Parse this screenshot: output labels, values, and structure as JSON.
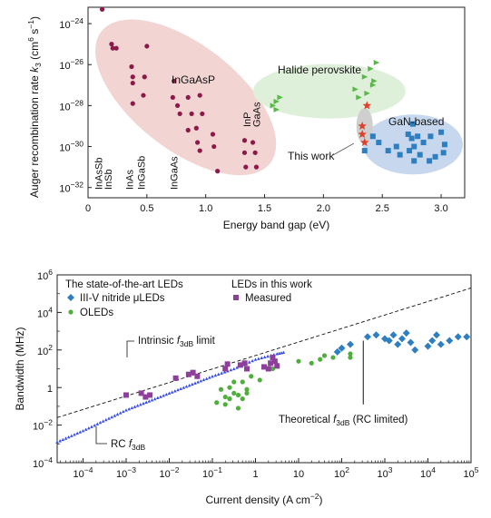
{
  "chart_data": [
    {
      "type": "scatter",
      "xlabel": "Energy band gap (eV)",
      "ylabel_parts": {
        "prefix": "Auger recombination rate ",
        "var": "k",
        "sub": "3",
        "unit_open": " (cm",
        "unit_exp1": "6",
        "unit_mid": " s",
        "unit_exp2": "−1",
        "unit_close": ")"
      },
      "xlim": [
        0,
        3.2
      ],
      "ylim_log10": [
        -32.5,
        -23.2
      ],
      "x_ticks": [
        0,
        0.5,
        1.0,
        1.5,
        2.0,
        2.5,
        3.0
      ],
      "x_tick_labels": [
        "0",
        "0.5",
        "1.0",
        "1.5",
        "2.0",
        "2.5",
        "3.0"
      ],
      "y_ticks_log10": [
        -24,
        -26,
        -28,
        -30,
        -32
      ],
      "y_tick_labels": [
        {
          "b": "10",
          "e": "−24"
        },
        {
          "b": "10",
          "e": "−26"
        },
        {
          "b": "10",
          "e": "−28"
        },
        {
          "b": "10",
          "e": "−30"
        },
        {
          "b": "10",
          "e": "−32"
        }
      ],
      "region_labels": {
        "ingaasp": "InGaAsP",
        "perovskite": "Halide perovskite",
        "gan": "GaN-based",
        "this_work": "This work"
      },
      "material_labels": [
        {
          "text": "InAsSb",
          "x": 0.09
        },
        {
          "text": "InSb",
          "x": 0.17
        },
        {
          "text": "InAs",
          "x": 0.35
        },
        {
          "text": "InGaSb",
          "x": 0.45
        },
        {
          "text": "InGaAs",
          "x": 0.73
        },
        {
          "text": "InP",
          "x": 1.35
        },
        {
          "text": "GaAs",
          "x": 1.43
        }
      ],
      "colors": {
        "ingaasp": "#8b1a4a",
        "ingaasp_fill": "#f2d4d2",
        "perovskite": "#5ab84a",
        "perovskite_fill": "#dff0da",
        "gan": "#2f7fc0",
        "gan_fill": "#c6d7ee",
        "this_work": "#e0412b",
        "this_work_fill": "#cfcfcf"
      },
      "series": [
        {
          "group": "InGaAsP",
          "marker": "circle",
          "color": "#8b1a4a",
          "points": [
            [
              0.12,
              -23.3
            ],
            [
              0.2,
              -25.0
            ],
            [
              0.21,
              -25.2
            ],
            [
              0.24,
              -25.2
            ],
            [
              0.37,
              -26.1
            ],
            [
              0.38,
              -26.6
            ],
            [
              0.38,
              -26.9
            ],
            [
              0.48,
              -26.6
            ],
            [
              0.47,
              -27.5
            ],
            [
              0.38,
              -27.9
            ],
            [
              0.5,
              -25.1
            ],
            [
              0.73,
              -26.8
            ],
            [
              0.72,
              -27.6
            ],
            [
              0.76,
              -28.0
            ],
            [
              0.85,
              -27.6
            ],
            [
              0.78,
              -28.4
            ],
            [
              0.88,
              -28.4
            ],
            [
              0.95,
              -27.5
            ],
            [
              0.97,
              -28.4
            ],
            [
              0.85,
              -29.2
            ],
            [
              0.92,
              -29.1
            ],
            [
              0.93,
              -29.8
            ],
            [
              0.95,
              -30.2
            ],
            [
              1.06,
              -29.4
            ],
            [
              1.07,
              -30.0
            ],
            [
              1.1,
              -31.2
            ],
            [
              1.33,
              -29.7
            ],
            [
              1.33,
              -30.3
            ],
            [
              1.34,
              -31.0
            ],
            [
              1.4,
              -29.8
            ],
            [
              1.42,
              -30.3
            ],
            [
              1.43,
              -31.0
            ]
          ]
        },
        {
          "group": "Halide perovskite",
          "marker": "triangle",
          "color": "#5ab84a",
          "points": [
            [
              1.57,
              -28.0
            ],
            [
              1.6,
              -27.8
            ],
            [
              1.63,
              -27.6
            ],
            [
              1.6,
              -28.2
            ],
            [
              2.27,
              -27.2
            ],
            [
              2.3,
              -27.6
            ],
            [
              2.35,
              -26.6
            ],
            [
              2.37,
              -27.4
            ],
            [
              2.4,
              -26.2
            ],
            [
              2.42,
              -27.0
            ],
            [
              2.43,
              -26.8
            ],
            [
              2.45,
              -25.9
            ]
          ]
        },
        {
          "group": "GaN-based",
          "marker": "square",
          "color": "#2f7fc0",
          "points": [
            [
              2.35,
              -30.2
            ],
            [
              2.42,
              -29.5
            ],
            [
              2.47,
              -29.8
            ],
            [
              2.55,
              -30.2
            ],
            [
              2.62,
              -30.0
            ],
            [
              2.65,
              -30.4
            ],
            [
              2.72,
              -29.4
            ],
            [
              2.75,
              -29.6
            ],
            [
              2.76,
              -28.9
            ],
            [
              2.77,
              -30.0
            ],
            [
              2.8,
              -29.5
            ],
            [
              2.82,
              -30.4
            ],
            [
              2.85,
              -29.8
            ],
            [
              2.9,
              -30.7
            ],
            [
              2.91,
              -29.5
            ],
            [
              2.95,
              -30.5
            ],
            [
              3.0,
              -29.3
            ],
            [
              3.02,
              -30.3
            ],
            [
              3.03,
              -29.9
            ],
            [
              2.77,
              -30.7
            ],
            [
              2.73,
              -30.2
            ]
          ]
        },
        {
          "group": "This work",
          "marker": "star",
          "color": "#e0412b",
          "points": [
            [
              2.33,
              -29.0
            ],
            [
              2.33,
              -29.4
            ],
            [
              2.35,
              -29.8
            ],
            [
              2.37,
              -28.0
            ]
          ]
        }
      ]
    },
    {
      "type": "scatter",
      "xlabel_parts": {
        "text": "Current density (A cm",
        "sup": "−2",
        "close": ")"
      },
      "ylabel": "Bandwidth (MHz)",
      "xlim_log10": [
        -4.6,
        5
      ],
      "ylim_log10": [
        -4,
        6
      ],
      "log_scale": {
        "x": true,
        "y": true
      },
      "x_ticks_log10": [
        -4,
        -3,
        -2,
        -1,
        0,
        1,
        2,
        3,
        4,
        5
      ],
      "x_tick_labels": [
        {
          "b": "10",
          "e": "−4"
        },
        {
          "b": "10",
          "e": "−3"
        },
        {
          "b": "10",
          "e": "−2"
        },
        {
          "b": "10",
          "e": "−1"
        },
        {
          "b": "1",
          "e": ""
        },
        {
          "b": "10",
          "e": ""
        },
        {
          "b": "10",
          "e": "2"
        },
        {
          "b": "10",
          "e": "3"
        },
        {
          "b": "10",
          "e": "4"
        },
        {
          "b": "10",
          "e": "5"
        }
      ],
      "y_ticks_log10": [
        -4,
        -2,
        0,
        2,
        4,
        6
      ],
      "y_tick_labels": [
        {
          "b": "10",
          "e": "−4"
        },
        {
          "b": "10",
          "e": "−2"
        },
        {
          "b": "1",
          "e": ""
        },
        {
          "b": "10",
          "e": "2"
        },
        {
          "b": "10",
          "e": "4"
        },
        {
          "b": "10",
          "e": "6"
        }
      ],
      "legend": {
        "heading_left": "The state-of-the-art LEDs",
        "heading_right": "LEDs in this work",
        "items": [
          {
            "label": "III-V nitride μLEDs",
            "marker": "diamond",
            "color": "#2f7fc0"
          },
          {
            "label": "OLEDs",
            "marker": "circle",
            "color": "#4fae3c"
          },
          {
            "label": "Measured",
            "marker": "square",
            "color": "#8e3f9b"
          }
        ]
      },
      "annotations": {
        "intrinsic": {
          "pre": "Intrinsic ",
          "f": "f",
          "sub": "3dB",
          "post": " limit"
        },
        "rc": {
          "pre": "RC ",
          "f": "f",
          "sub": "3dB",
          "post": ""
        },
        "theoretical": {
          "pre": "Theoretical ",
          "f": "f",
          "sub": "3dB",
          "post": " (RC limited)"
        }
      },
      "colors": {
        "nitride": "#2f7fc0",
        "oled": "#4fae3c",
        "measured": "#8e3f9b",
        "rc": "#3a4fe0",
        "intrinsic": "#111111"
      },
      "lines": {
        "intrinsic_limit_log10": [
          [
            -4.6,
            -1.6
          ],
          [
            5,
            5.3
          ]
        ],
        "rc_curve_log10": [
          [
            -4.6,
            -2.9
          ],
          [
            -4,
            -2.3
          ],
          [
            -3,
            -1.2
          ],
          [
            -2,
            -0.3
          ],
          [
            -1,
            0.6
          ],
          [
            -0.5,
            1.0
          ],
          [
            0,
            1.5
          ],
          [
            0.5,
            1.8
          ],
          [
            0.7,
            1.9
          ]
        ],
        "theoretical_vline_x_log10": 2.5,
        "theoretical_vline_y_log10": [
          -0.9,
          2.5
        ]
      },
      "series": [
        {
          "name": "III-V nitride μLEDs",
          "marker": "diamond",
          "color": "#2f7fc0",
          "points": [
            [
              1.9,
              1.9
            ],
            [
              2.0,
              2.1
            ],
            [
              2.2,
              2.3
            ],
            [
              2.6,
              2.7
            ],
            [
              2.8,
              2.8
            ],
            [
              3.0,
              2.6
            ],
            [
              3.1,
              2.5
            ],
            [
              3.2,
              2.8
            ],
            [
              3.3,
              2.3
            ],
            [
              3.4,
              2.6
            ],
            [
              3.5,
              2.9
            ],
            [
              3.6,
              2.4
            ],
            [
              3.7,
              2.0
            ],
            [
              4.0,
              2.2
            ],
            [
              4.1,
              2.5
            ],
            [
              4.2,
              2.8
            ],
            [
              4.3,
              2.3
            ],
            [
              4.5,
              2.5
            ],
            [
              4.7,
              2.7
            ],
            [
              4.9,
              2.7
            ]
          ]
        },
        {
          "name": "OLEDs",
          "marker": "circle",
          "color": "#4fae3c",
          "points": [
            [
              -0.9,
              -0.8
            ],
            [
              -0.8,
              -0.1
            ],
            [
              -0.7,
              -0.5
            ],
            [
              -0.7,
              -0.9
            ],
            [
              -0.6,
              0.0
            ],
            [
              -0.6,
              -0.6
            ],
            [
              -0.5,
              -0.3
            ],
            [
              -0.5,
              0.3
            ],
            [
              -0.4,
              -0.4
            ],
            [
              -0.4,
              -1.1
            ],
            [
              -0.3,
              -0.6
            ],
            [
              -0.3,
              0.3
            ],
            [
              -0.2,
              -0.3
            ],
            [
              -0.2,
              -0.1
            ],
            [
              -0.1,
              0.6
            ],
            [
              0.1,
              0.4
            ],
            [
              0.4,
              1.0
            ],
            [
              0.5,
              1.2
            ],
            [
              1.0,
              1.4
            ],
            [
              1.3,
              1.3
            ],
            [
              1.5,
              1.5
            ],
            [
              1.6,
              1.7
            ],
            [
              1.8,
              1.6
            ],
            [
              2.2,
              1.8
            ],
            [
              2.2,
              1.6
            ]
          ]
        },
        {
          "name": "Measured",
          "marker": "square",
          "color": "#8e3f9b",
          "points": [
            [
              -3.0,
              -0.4
            ],
            [
              -2.65,
              -0.3
            ],
            [
              -2.55,
              -0.5
            ],
            [
              -2.45,
              -0.4
            ],
            [
              -1.85,
              0.5
            ],
            [
              -1.55,
              0.7
            ],
            [
              -1.45,
              0.8
            ],
            [
              -1.35,
              0.6
            ],
            [
              -0.7,
              1.0
            ],
            [
              -0.65,
              1.25
            ],
            [
              -0.35,
              1.2
            ],
            [
              -0.25,
              1.3
            ],
            [
              -0.2,
              1.0
            ],
            [
              0.2,
              1.1
            ],
            [
              0.3,
              1.0
            ],
            [
              0.35,
              1.3
            ],
            [
              0.4,
              1.6
            ],
            [
              0.45,
              1.4
            ],
            [
              0.5,
              1.15
            ]
          ]
        }
      ]
    }
  ]
}
